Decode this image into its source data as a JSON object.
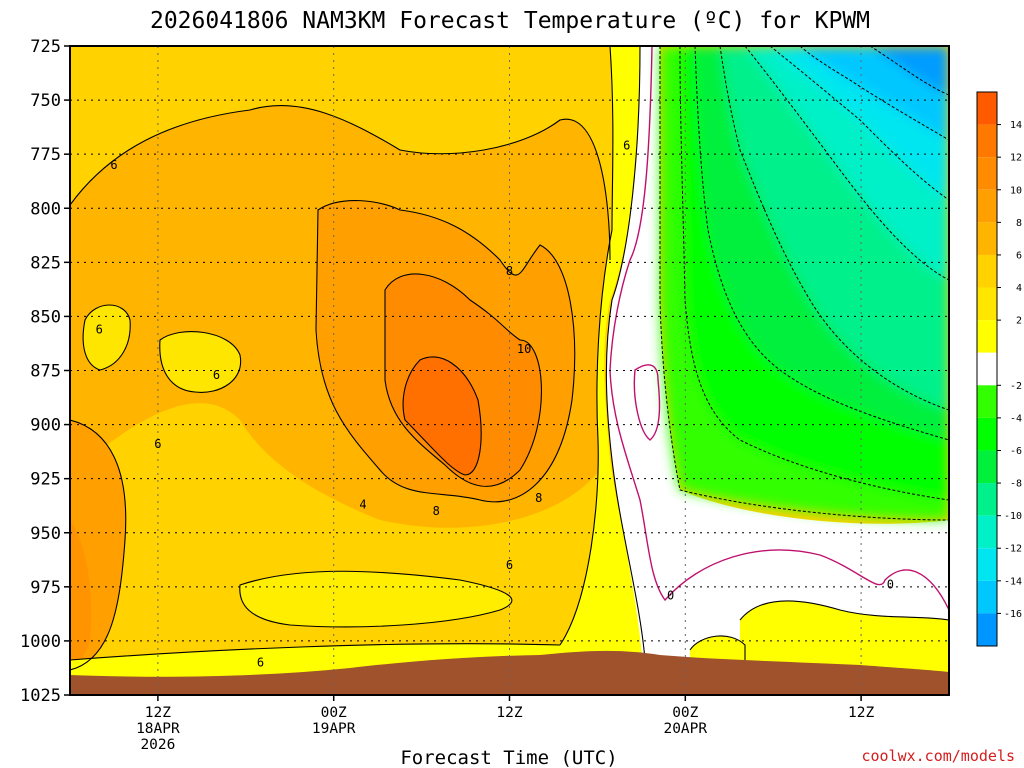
{
  "page": {
    "title": "2026041806 NAM3KM Forecast Temperature (ºC) for KPWM",
    "credit": "coolwx.com/models"
  },
  "chart_data": {
    "type": "heatmap",
    "title": "2026041806 NAM3KM Forecast Temperature (ºC) for KPWM",
    "xlabel": "Forecast Time (UTC)",
    "ylabel": "",
    "y_axis": {
      "ticks": [
        725,
        750,
        775,
        800,
        825,
        850,
        875,
        900,
        925,
        950,
        975,
        1000,
        1025
      ],
      "ylim": [
        1025,
        725
      ],
      "grid": true
    },
    "x_axis": {
      "ticks": [
        {
          "time": "2026-04-18 12Z",
          "lines": [
            "12Z",
            "18APR",
            "2026"
          ]
        },
        {
          "time": "2026-04-19 00Z",
          "lines": [
            "00Z",
            "19APR"
          ]
        },
        {
          "time": "2026-04-19 12Z",
          "lines": [
            "12Z"
          ]
        },
        {
          "time": "2026-04-20 00Z",
          "lines": [
            "00Z",
            "20APR"
          ]
        },
        {
          "time": "2026-04-20 12Z",
          "lines": [
            "12Z"
          ]
        }
      ],
      "xlim": [
        "2026-04-18 06Z",
        "2026-04-20 18Z"
      ],
      "grid": true
    },
    "colorbar": {
      "labels": [
        "14",
        "12",
        "10",
        "8",
        "6",
        "4",
        "2",
        "-2",
        "-4",
        "-6",
        "-8",
        "-10",
        "-12",
        "-14",
        "-16"
      ],
      "bins": [
        {
          "lo": 14,
          "hi": 16,
          "color": "#ff5a00"
        },
        {
          "lo": 12,
          "hi": 14,
          "color": "#ff7800"
        },
        {
          "lo": 10,
          "hi": 12,
          "color": "#ff8c00"
        },
        {
          "lo": 8,
          "hi": 10,
          "color": "#ffa000"
        },
        {
          "lo": 6,
          "hi": 8,
          "color": "#ffb400"
        },
        {
          "lo": 4,
          "hi": 6,
          "color": "#ffd200"
        },
        {
          "lo": 2,
          "hi": 4,
          "color": "#ffe600"
        },
        {
          "lo": 0,
          "hi": 2,
          "color": "#ffff00"
        },
        {
          "lo": -2,
          "hi": 0,
          "color": "#ffffff"
        },
        {
          "lo": -4,
          "hi": -2,
          "color": "#32ff00"
        },
        {
          "lo": -6,
          "hi": -4,
          "color": "#00ff00"
        },
        {
          "lo": -8,
          "hi": -6,
          "color": "#00f03c"
        },
        {
          "lo": -10,
          "hi": -8,
          "color": "#00f08c"
        },
        {
          "lo": -12,
          "hi": -10,
          "color": "#00f0c8"
        },
        {
          "lo": -14,
          "hi": -12,
          "color": "#00e6f0"
        },
        {
          "lo": -16,
          "hi": -14,
          "color": "#00c8ff"
        },
        {
          "lo": -18,
          "hi": -16,
          "color": "#0096ff"
        }
      ]
    },
    "contour_labels": [
      {
        "text": "6",
        "time": "2026-04-18 09Z",
        "p": 780
      },
      {
        "text": "6",
        "time": "2026-04-19 20Z",
        "p": 771
      },
      {
        "text": "8",
        "time": "2026-04-19 12Z",
        "p": 829
      },
      {
        "text": "10",
        "time": "2026-04-19 13Z",
        "p": 865
      },
      {
        "text": "6",
        "time": "2026-04-18 08Z",
        "p": 856
      },
      {
        "text": "6",
        "time": "2026-04-18 16Z",
        "p": 877
      },
      {
        "text": "6",
        "time": "2026-04-18 12Z",
        "p": 909
      },
      {
        "text": "8",
        "time": "2026-04-19 14Z",
        "p": 934
      },
      {
        "text": "8",
        "time": "2026-04-19 07Z",
        "p": 940
      },
      {
        "text": "4",
        "time": "2026-04-19 02Z",
        "p": 937
      },
      {
        "text": "6",
        "time": "2026-04-19 12Z",
        "p": 965
      },
      {
        "text": "6",
        "time": "2026-04-18 19Z",
        "p": 1010
      },
      {
        "text": "0",
        "time": "2026-04-19 23Z",
        "p": 979
      },
      {
        "text": "0",
        "time": "2026-04-20 14Z",
        "p": 974
      }
    ],
    "temperature_summary": {
      "max_warm_core_C": 14,
      "min_upper_right_C": -18,
      "freezing_line_crossing": "2026-04-19 ~19Z-21Z"
    }
  }
}
